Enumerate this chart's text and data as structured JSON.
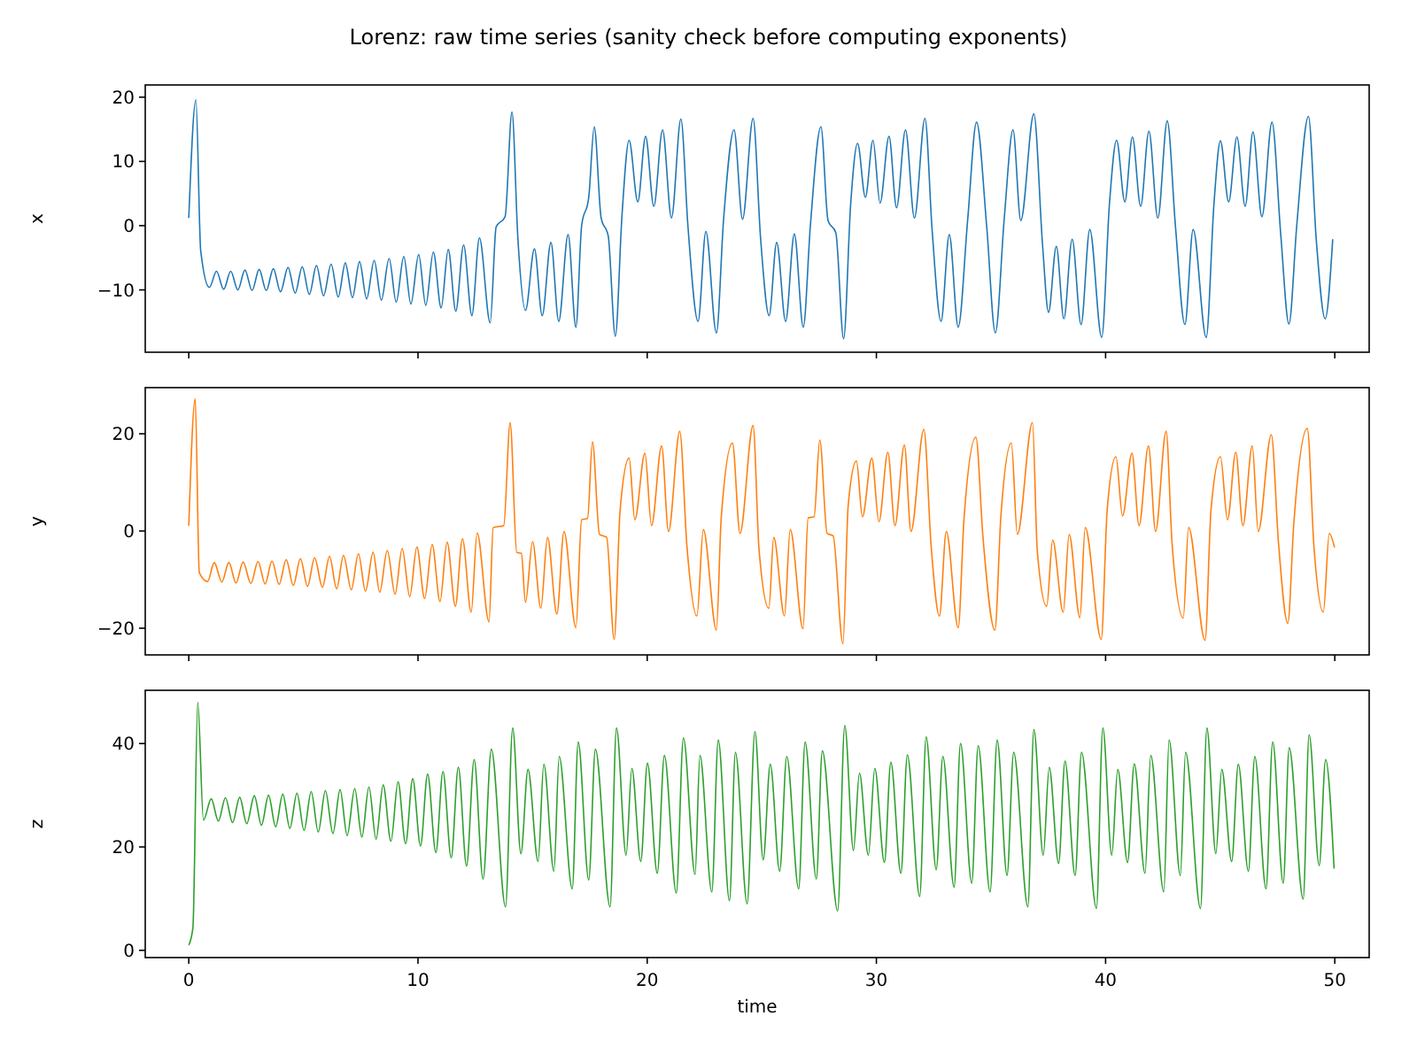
{
  "chart_data": [
    {
      "type": "line",
      "title": "Lorenz: raw time series (sanity check before computing exponents)",
      "ylabel": "x",
      "xlim": [
        -1.9,
        51.5
      ],
      "xticks": [
        0,
        10,
        20,
        30,
        40,
        50
      ],
      "ylim": [
        -19.7,
        21.9
      ],
      "yticks": [
        -10,
        0,
        10,
        20
      ],
      "tick_labels": "y",
      "series": [
        {
          "color": "#1f77b4",
          "x": [
            0,
            0.31,
            0.52,
            0.9,
            1.21,
            1.52,
            1.83,
            2.14,
            2.45,
            2.76,
            3.07,
            3.38,
            3.69,
            4.0,
            4.33,
            4.64,
            4.95,
            5.26,
            5.57,
            5.88,
            6.21,
            6.52,
            6.83,
            7.14,
            7.45,
            7.76,
            8.09,
            8.4,
            8.74,
            9.05,
            9.38,
            9.69,
            10.03,
            10.34,
            10.67,
            11.01,
            11.32,
            11.65,
            11.99,
            12.35,
            12.68,
            13.15,
            13.41,
            13.8,
            14.1,
            14.36,
            14.69,
            15.08,
            15.42,
            15.8,
            16.14,
            16.55,
            16.89,
            17.14,
            17.45,
            17.69,
            17.99,
            18.3,
            18.61,
            18.9,
            19.21,
            19.59,
            19.93,
            20.29,
            20.67,
            21.06,
            21.47,
            21.78,
            22.22,
            22.56,
            23.02,
            23.33,
            23.79,
            24.16,
            24.62,
            24.95,
            25.32,
            25.65,
            26.04,
            26.42,
            26.81,
            27.12,
            27.58,
            27.89,
            28.23,
            28.57,
            28.88,
            29.18,
            29.52,
            29.85,
            30.16,
            30.55,
            30.88,
            31.27,
            31.66,
            32.12,
            32.43,
            32.82,
            33.18,
            33.57,
            33.98,
            34.37,
            34.81,
            35.19,
            35.58,
            35.96,
            36.3,
            36.87,
            37.25,
            37.51,
            37.85,
            38.18,
            38.54,
            38.93,
            39.31,
            39.83,
            40.17,
            40.48,
            40.84,
            41.17,
            41.53,
            41.89,
            42.28,
            42.69,
            43.05,
            43.46,
            43.82,
            44.39,
            44.73,
            45.01,
            45.37,
            45.73,
            46.09,
            46.43,
            46.82,
            47.26,
            47.64,
            48.0,
            48.34,
            48.85,
            49.19,
            49.58,
            49.91
          ],
          "values": [
            1.2,
            19.6,
            -3.9,
            -9.6,
            -7.1,
            -9.9,
            -7.1,
            -10.0,
            -6.9,
            -10.1,
            -6.8,
            -10.1,
            -6.7,
            -10.3,
            -6.5,
            -10.5,
            -6.4,
            -10.7,
            -6.2,
            -10.9,
            -6.0,
            -11.1,
            -5.8,
            -11.2,
            -5.6,
            -11.4,
            -5.4,
            -11.6,
            -5.1,
            -11.9,
            -4.8,
            -12.2,
            -4.5,
            -12.4,
            -4.1,
            -12.8,
            -3.7,
            -13.3,
            -3.0,
            -14.0,
            -1.9,
            -15.1,
            -0.2,
            1.4,
            17.7,
            -2.1,
            -13.2,
            -3.6,
            -14.0,
            -2.6,
            -14.9,
            -1.4,
            -15.8,
            0.0,
            4.4,
            15.4,
            1.2,
            -1.6,
            -17.2,
            1.6,
            13.3,
            3.7,
            13.9,
            3.0,
            14.9,
            1.2,
            16.6,
            -0.2,
            -14.9,
            -0.9,
            -16.7,
            0.8,
            14.9,
            1.0,
            16.7,
            -2.1,
            -14.0,
            -2.6,
            -14.9,
            -1.3,
            -15.8,
            0.0,
            15.4,
            0.8,
            -1.1,
            -17.6,
            3.5,
            12.8,
            4.4,
            13.3,
            3.5,
            13.9,
            2.8,
            14.9,
            1.2,
            16.7,
            -0.6,
            -14.9,
            -1.4,
            -15.8,
            0.8,
            16.1,
            0.0,
            -16.7,
            1.2,
            14.9,
            0.8,
            17.4,
            -3.0,
            -13.5,
            -3.2,
            -14.5,
            -2.1,
            -15.4,
            -0.6,
            -17.4,
            3.5,
            13.3,
            3.7,
            13.8,
            3.0,
            14.7,
            1.2,
            16.3,
            -0.2,
            -15.4,
            -0.6,
            -17.4,
            3.5,
            13.2,
            3.7,
            13.8,
            3.0,
            14.6,
            1.4,
            16.1,
            -1.3,
            -15.3,
            0.0,
            17.0,
            -2.1,
            -14.5,
            -2.1
          ]
        }
      ]
    },
    {
      "type": "line",
      "ylabel": "y",
      "xlim": [
        -1.9,
        51.5
      ],
      "xticks": [
        0,
        10,
        20,
        30,
        40,
        50
      ],
      "ylim": [
        -25.5,
        29.5
      ],
      "yticks": [
        -20,
        0,
        20
      ],
      "tick_labels": "y",
      "series": [
        {
          "color": "#ff7f0e",
          "x": [
            0,
            0.28,
            0.46,
            0.82,
            1.11,
            1.44,
            1.75,
            2.06,
            2.37,
            2.71,
            3.02,
            3.33,
            3.63,
            3.94,
            4.25,
            4.56,
            4.87,
            5.18,
            5.49,
            5.83,
            6.14,
            6.45,
            6.75,
            7.09,
            7.4,
            7.71,
            8.04,
            8.33,
            8.66,
            9.0,
            9.31,
            9.64,
            9.95,
            10.29,
            10.62,
            10.96,
            11.27,
            11.63,
            11.94,
            12.32,
            12.58,
            13.1,
            13.28,
            13.74,
            14.02,
            14.31,
            14.51,
            14.69,
            15.0,
            15.36,
            15.65,
            16.06,
            16.37,
            16.89,
            17.14,
            17.4,
            17.61,
            17.92,
            18.23,
            18.56,
            18.82,
            19.21,
            19.46,
            19.9,
            20.19,
            20.63,
            20.93,
            21.42,
            21.73,
            22.17,
            22.45,
            23.02,
            23.23,
            23.72,
            24.05,
            24.62,
            24.88,
            25.31,
            25.52,
            25.99,
            26.24,
            26.8,
            27.02,
            27.28,
            27.53,
            27.85,
            28.11,
            28.54,
            28.77,
            29.13,
            29.39,
            29.8,
            30.11,
            30.5,
            30.81,
            31.22,
            31.51,
            32.07,
            32.39,
            32.75,
            33.05,
            33.57,
            33.82,
            34.34,
            34.65,
            35.17,
            35.43,
            35.89,
            36.15,
            36.81,
            37.02,
            37.43,
            37.69,
            38.15,
            38.41,
            38.88,
            39.11,
            39.81,
            40.07,
            40.45,
            40.74,
            41.15,
            41.46,
            41.87,
            42.18,
            42.64,
            42.9,
            43.39,
            43.62,
            44.34,
            44.6,
            45.01,
            45.32,
            45.68,
            45.99,
            46.4,
            46.66,
            47.23,
            47.54,
            47.95,
            48.21,
            48.8,
            49.09,
            49.5,
            49.76,
            49.99
          ],
          "values": [
            1.1,
            27.2,
            -8.6,
            -10.4,
            -6.5,
            -10.5,
            -6.5,
            -10.7,
            -6.4,
            -10.8,
            -6.3,
            -10.9,
            -6.2,
            -11.0,
            -5.9,
            -11.2,
            -5.7,
            -11.4,
            -5.5,
            -11.6,
            -5.2,
            -11.9,
            -5.0,
            -12.1,
            -4.7,
            -12.4,
            -4.4,
            -12.6,
            -4.0,
            -13.0,
            -3.6,
            -13.5,
            -3.3,
            -13.9,
            -2.8,
            -14.5,
            -2.3,
            -15.5,
            -1.6,
            -16.7,
            -0.4,
            -18.7,
            0.7,
            1.1,
            22.3,
            -4.4,
            -4.6,
            -14.7,
            -2.2,
            -15.9,
            -1.3,
            -17.1,
            -0.1,
            -19.9,
            2.3,
            2.6,
            18.4,
            -0.7,
            -1.3,
            -22.3,
            4.4,
            15.0,
            2.3,
            16.0,
            1.1,
            17.5,
            -0.1,
            20.5,
            -2.9,
            -17.5,
            0.3,
            -20.4,
            2.7,
            18.1,
            -0.5,
            21.7,
            -3.8,
            -15.9,
            -1.3,
            -17.5,
            0.3,
            -20.1,
            2.7,
            2.9,
            18.7,
            -0.5,
            -1.0,
            -23.2,
            5.3,
            14.4,
            2.9,
            15.0,
            1.9,
            16.2,
            1.1,
            17.7,
            -0.1,
            20.9,
            -3.2,
            -17.5,
            -0.1,
            -19.9,
            2.3,
            19.3,
            -1.3,
            -20.4,
            2.9,
            18.1,
            -0.7,
            22.3,
            -4.1,
            -15.5,
            -1.9,
            -16.7,
            -0.7,
            -17.9,
            0.7,
            -22.3,
            4.4,
            15.3,
            3.1,
            16.0,
            1.1,
            17.5,
            -0.1,
            20.5,
            -2.5,
            -17.9,
            0.7,
            -22.5,
            4.4,
            15.3,
            2.3,
            16.2,
            1.1,
            17.5,
            -0.1,
            19.8,
            -2.2,
            -19.0,
            1.4,
            21.1,
            -3.2,
            -16.7,
            -0.5,
            -3.4
          ]
        }
      ]
    },
    {
      "type": "line",
      "ylabel": "z",
      "xlabel": "time",
      "xlim": [
        -1.9,
        51.5
      ],
      "xticks": [
        0,
        10,
        20,
        30,
        40,
        50
      ],
      "ylim": [
        -1.4,
        50.3
      ],
      "yticks": [
        0,
        20,
        40
      ],
      "series": [
        {
          "color": "#2ca02c",
          "x": [
            0,
            0.18,
            0.39,
            0.64,
            0.98,
            1.29,
            1.6,
            1.91,
            2.22,
            2.53,
            2.86,
            3.17,
            3.48,
            3.79,
            4.1,
            4.41,
            4.72,
            5.03,
            5.34,
            5.65,
            5.96,
            6.29,
            6.6,
            6.91,
            7.24,
            7.55,
            7.86,
            8.17,
            8.48,
            8.82,
            9.13,
            9.46,
            9.77,
            10.11,
            10.42,
            10.78,
            11.09,
            11.45,
            11.76,
            12.12,
            12.45,
            12.84,
            13.2,
            13.82,
            14.13,
            14.49,
            14.8,
            15.24,
            15.49,
            15.93,
            16.16,
            16.73,
            16.99,
            17.45,
            17.74,
            18.38,
            18.66,
            19.08,
            19.33,
            19.72,
            20.01,
            20.44,
            20.75,
            21.27,
            21.58,
            22.09,
            22.3,
            22.82,
            23.1,
            23.59,
            23.85,
            24.36,
            24.7,
            25.06,
            25.37,
            25.78,
            26.09,
            26.61,
            26.89,
            27.38,
            27.64,
            28.31,
            28.62,
            29.0,
            29.26,
            29.65,
            29.93,
            30.35,
            30.63,
            31.07,
            31.35,
            31.89,
            32.17,
            32.61,
            32.9,
            33.39,
            33.67,
            34.16,
            34.44,
            34.96,
            35.27,
            35.7,
            35.99,
            36.61,
            36.87,
            37.28,
            37.54,
            37.95,
            38.23,
            38.67,
            38.95,
            39.6,
            39.88,
            40.27,
            40.53,
            40.96,
            41.25,
            41.72,
            41.97,
            42.54,
            42.77,
            43.26,
            43.49,
            44.14,
            44.42,
            44.81,
            45.07,
            45.5,
            45.79,
            46.23,
            46.51,
            47.0,
            47.29,
            47.75,
            48.01,
            48.62,
            48.88,
            49.32,
            49.6,
            49.97
          ],
          "values": [
            1.0,
            4.4,
            48.0,
            25.2,
            29.3,
            25.0,
            29.5,
            24.7,
            29.6,
            24.5,
            29.9,
            24.2,
            30.0,
            23.9,
            30.2,
            23.6,
            30.4,
            23.2,
            30.7,
            22.9,
            30.9,
            22.6,
            31.1,
            22.2,
            31.3,
            21.9,
            31.6,
            21.5,
            32.0,
            21.1,
            32.6,
            20.6,
            33.2,
            20.2,
            34.1,
            18.9,
            34.6,
            17.9,
            35.4,
            16.3,
            36.9,
            13.8,
            38.9,
            8.4,
            43.0,
            18.7,
            35.0,
            17.2,
            36.0,
            15.3,
            37.5,
            11.9,
            40.3,
            13.6,
            38.9,
            8.4,
            43.0,
            18.4,
            35.2,
            17.2,
            36.2,
            14.9,
            37.7,
            11.1,
            41.1,
            14.7,
            37.7,
            11.3,
            40.7,
            9.6,
            38.3,
            9.0,
            42.3,
            17.5,
            36.0,
            15.3,
            37.5,
            11.9,
            40.3,
            13.8,
            38.6,
            7.6,
            43.5,
            19.3,
            34.3,
            18.4,
            35.2,
            17.0,
            36.4,
            14.9,
            37.8,
            10.4,
            41.3,
            15.6,
            37.5,
            12.2,
            40.0,
            13.0,
            39.6,
            11.3,
            40.7,
            14.5,
            38.3,
            8.4,
            42.7,
            18.4,
            35.4,
            16.8,
            36.6,
            14.5,
            38.3,
            8.1,
            43.0,
            18.4,
            35.0,
            17.0,
            36.1,
            14.9,
            37.7,
            11.3,
            40.7,
            14.5,
            38.3,
            8.1,
            43.0,
            18.7,
            35.0,
            17.2,
            36.0,
            15.3,
            37.5,
            11.9,
            40.3,
            13.0,
            39.2,
            9.9,
            41.7,
            16.4,
            36.9,
            15.8
          ]
        }
      ]
    }
  ]
}
